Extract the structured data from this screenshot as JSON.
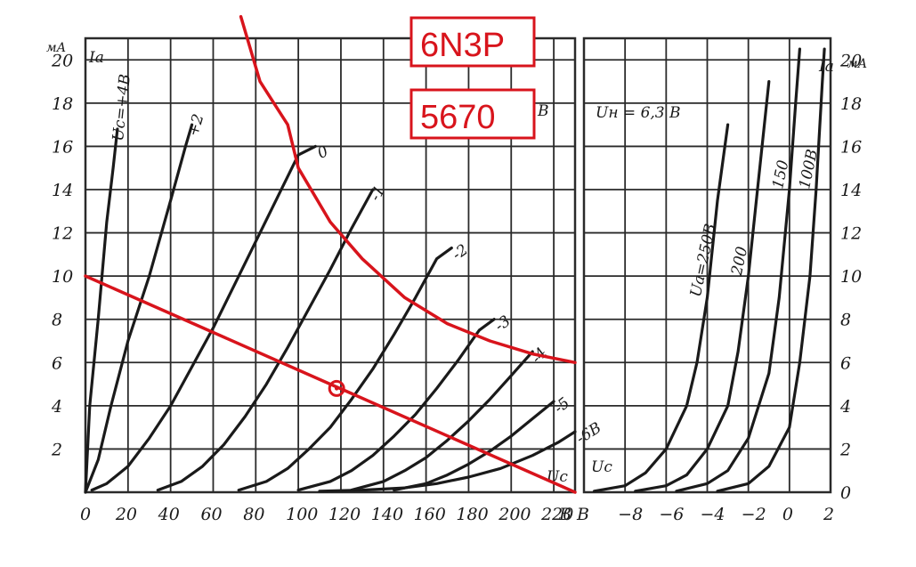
{
  "colors": {
    "ink": "#1a1a1a",
    "grid": "#2a2a2a",
    "annotation": "#d8141c",
    "paper": "#ffffff"
  },
  "annotations": {
    "tube_name": "6N3P",
    "tube_number": "5670"
  },
  "chart_data": [
    {
      "type": "line",
      "title": "",
      "ylabel": "Ia",
      "yunit": "мА",
      "xunit": "В",
      "xlim": [
        0,
        230
      ],
      "ylim": [
        0,
        21
      ],
      "grid": true,
      "x_ticks": [
        "0",
        "20",
        "40",
        "60",
        "80",
        "100",
        "120",
        "140",
        "160",
        "180",
        "200",
        "220"
      ],
      "x_tick_values": [
        0,
        20,
        40,
        60,
        80,
        100,
        120,
        140,
        160,
        180,
        200,
        220
      ],
      "x_axis_end_label": "В",
      "y_ticks": [
        "2",
        "4",
        "6",
        "8",
        "10",
        "12",
        "14",
        "16",
        "18",
        "20"
      ],
      "y_tick_values": [
        2,
        4,
        6,
        8,
        10,
        12,
        14,
        16,
        18,
        20
      ],
      "top_right_fragment": "В",
      "param_label": "Uc",
      "series": [
        {
          "name": "Uc = +4 В",
          "label": "Uc=+4В",
          "points": [
            [
              0,
              0
            ],
            [
              2,
              4
            ],
            [
              6,
              8
            ],
            [
              10,
              12.5
            ],
            [
              13,
              15
            ],
            [
              15,
              16.8
            ]
          ]
        },
        {
          "name": "+2",
          "label": "+2",
          "points": [
            [
              0,
              0
            ],
            [
              6,
              1.5
            ],
            [
              12,
              4
            ],
            [
              20,
              7
            ],
            [
              30,
              10
            ],
            [
              40,
              13.5
            ],
            [
              47,
              16
            ],
            [
              50,
              17
            ]
          ]
        },
        {
          "name": "0",
          "label": "0",
          "points": [
            [
              3,
              0.1
            ],
            [
              10,
              0.4
            ],
            [
              20,
              1.2
            ],
            [
              30,
              2.5
            ],
            [
              40,
              4
            ],
            [
              50,
              5.8
            ],
            [
              60,
              7.6
            ],
            [
              70,
              9.6
            ],
            [
              80,
              11.6
            ],
            [
              90,
              13.6
            ],
            [
              100,
              15.6
            ],
            [
              108,
              16
            ]
          ]
        },
        {
          "name": "-1",
          "label": "-1",
          "points": [
            [
              34,
              0.1
            ],
            [
              45,
              0.5
            ],
            [
              55,
              1.2
            ],
            [
              65,
              2.2
            ],
            [
              75,
              3.5
            ],
            [
              85,
              5
            ],
            [
              95,
              6.7
            ],
            [
              105,
              8.5
            ],
            [
              115,
              10.3
            ],
            [
              125,
              12.2
            ],
            [
              135,
              14
            ]
          ]
        },
        {
          "name": "-2",
          "label": "-2",
          "points": [
            [
              72,
              0.1
            ],
            [
              85,
              0.5
            ],
            [
              95,
              1.1
            ],
            [
              105,
              2
            ],
            [
              115,
              3
            ],
            [
              125,
              4.3
            ],
            [
              135,
              5.7
            ],
            [
              145,
              7.3
            ],
            [
              155,
              9
            ],
            [
              165,
              10.8
            ],
            [
              172,
              11.3
            ]
          ]
        },
        {
          "name": "-3",
          "label": "-3",
          "points": [
            [
              100,
              0.1
            ],
            [
              115,
              0.5
            ],
            [
              125,
              1
            ],
            [
              135,
              1.7
            ],
            [
              145,
              2.6
            ],
            [
              155,
              3.6
            ],
            [
              165,
              4.8
            ],
            [
              175,
              6.1
            ],
            [
              185,
              7.5
            ],
            [
              192,
              8
            ]
          ]
        },
        {
          "name": "-4",
          "label": "-4",
          "points": [
            [
              125,
              0.1
            ],
            [
              140,
              0.5
            ],
            [
              150,
              1
            ],
            [
              160,
              1.6
            ],
            [
              170,
              2.4
            ],
            [
              180,
              3.3
            ],
            [
              190,
              4.3
            ],
            [
              200,
              5.4
            ],
            [
              210,
              6.5
            ]
          ]
        },
        {
          "name": "-5",
          "label": "-5",
          "points": [
            [
              145,
              0.1
            ],
            [
              160,
              0.4
            ],
            [
              170,
              0.8
            ],
            [
              180,
              1.3
            ],
            [
              190,
              1.9
            ],
            [
              200,
              2.6
            ],
            [
              210,
              3.4
            ],
            [
              220,
              4.2
            ]
          ]
        },
        {
          "name": "-6 В",
          "label": "-6В",
          "points": [
            [
              110,
              0.05
            ],
            [
              130,
              0.1
            ],
            [
              150,
              0.2
            ],
            [
              165,
              0.4
            ],
            [
              180,
              0.7
            ],
            [
              195,
              1.1
            ],
            [
              210,
              1.7
            ],
            [
              222,
              2.3
            ],
            [
              230,
              2.8
            ]
          ]
        }
      ],
      "load_line": {
        "label": "",
        "points": [
          [
            0,
            10
          ],
          [
            230,
            0
          ]
        ]
      },
      "max_dissipation": {
        "points": [
          [
            73,
            22
          ],
          [
            82,
            19
          ],
          [
            95,
            17
          ],
          [
            100,
            15
          ],
          [
            115,
            12.5
          ],
          [
            130,
            10.8
          ],
          [
            150,
            9
          ],
          [
            170,
            7.8
          ],
          [
            190,
            7
          ],
          [
            210,
            6.4
          ],
          [
            230,
            6
          ]
        ]
      },
      "operating_point": {
        "x": 118,
        "y": 4.8
      }
    },
    {
      "type": "line",
      "title": "",
      "annotation": "Uн = 6,3 В",
      "ylabel": "Ia",
      "yunit": "мА",
      "xlim": [
        -10,
        2
      ],
      "ylim": [
        0,
        21
      ],
      "grid": true,
      "x_ticks": [
        "В",
        "−8",
        "−6",
        "−4",
        "−2",
        "0",
        "2"
      ],
      "x_tick_values": [
        -10,
        -8,
        -6,
        -4,
        -2,
        0,
        2
      ],
      "y_ticks": [
        "0",
        "2",
        "4",
        "6",
        "8",
        "10",
        "12",
        "14",
        "16",
        "18",
        "20"
      ],
      "y_tick_values": [
        0,
        2,
        4,
        6,
        8,
        10,
        12,
        14,
        16,
        18,
        20
      ],
      "param_label": "Uc",
      "series": [
        {
          "name": "Ua = 250 В",
          "label": "Ua=250В",
          "points": [
            [
              -9.5,
              0.05
            ],
            [
              -8,
              0.3
            ],
            [
              -7,
              0.9
            ],
            [
              -6,
              2
            ],
            [
              -5,
              4
            ],
            [
              -4.5,
              6
            ],
            [
              -4,
              9
            ],
            [
              -3.5,
              13.5
            ],
            [
              -3,
              17
            ]
          ]
        },
        {
          "name": "200",
          "label": "200",
          "points": [
            [
              -7.5,
              0.05
            ],
            [
              -6,
              0.3
            ],
            [
              -5,
              0.8
            ],
            [
              -4,
              2
            ],
            [
              -3,
              4
            ],
            [
              -2.5,
              6.5
            ],
            [
              -2,
              10
            ],
            [
              -1.5,
              14.5
            ],
            [
              -1,
              19
            ]
          ]
        },
        {
          "name": "150",
          "label": "150",
          "points": [
            [
              -5.5,
              0.05
            ],
            [
              -4,
              0.4
            ],
            [
              -3,
              1
            ],
            [
              -2,
              2.5
            ],
            [
              -1,
              5.5
            ],
            [
              -0.5,
              9
            ],
            [
              0,
              14
            ],
            [
              0.3,
              18
            ],
            [
              0.5,
              20.5
            ]
          ]
        },
        {
          "name": "100 В",
          "label": "100В",
          "points": [
            [
              -3.5,
              0.05
            ],
            [
              -2,
              0.4
            ],
            [
              -1,
              1.2
            ],
            [
              0,
              3
            ],
            [
              0.5,
              6
            ],
            [
              1,
              10
            ],
            [
              1.3,
              14
            ],
            [
              1.6,
              19
            ],
            [
              1.7,
              20.5
            ]
          ]
        }
      ]
    }
  ]
}
